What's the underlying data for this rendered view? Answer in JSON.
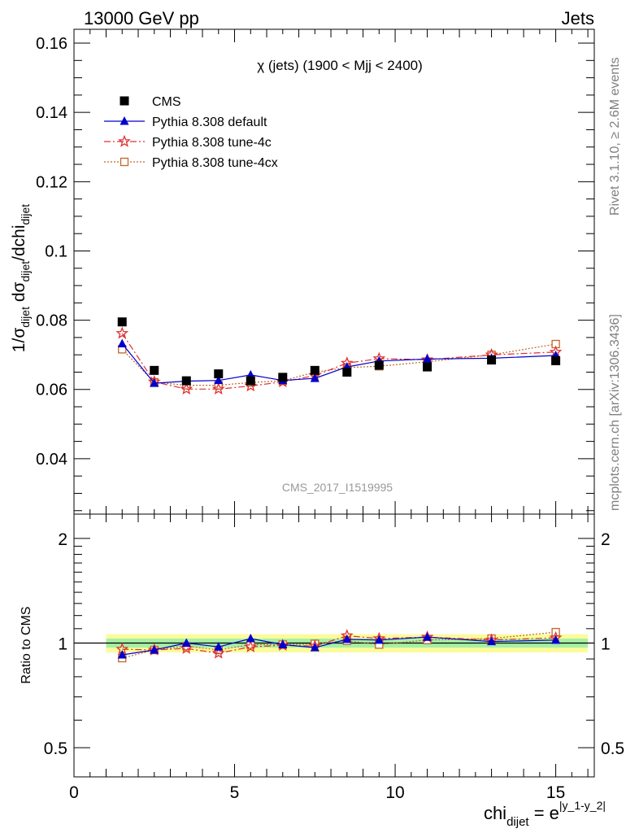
{
  "header": {
    "left": "13000 GeV pp",
    "right": "Jets"
  },
  "side_labels": {
    "upper": "Rivet 3.1.10, ≥ 2.6M events",
    "lower": "mcplots.cern.ch [arXiv:1306.3436]"
  },
  "chart_data": [
    {
      "type": "scatter",
      "panel": "main",
      "title": "χ (jets) (1900 < Mjj < 2400)",
      "watermark": "CMS_2017_I1519995",
      "ylabel_parts": {
        "a": "1/σ",
        "a_sub": "dijet",
        "b": " dσ",
        "b_sub": "dijet",
        "c": "/dchi",
        "c_sub": "dijet"
      },
      "xlim": [
        0,
        16.2
      ],
      "ylim": [
        0.024,
        0.164
      ],
      "x_ticks": [
        0,
        5,
        10,
        15
      ],
      "y_ticks": [
        0.04,
        0.06,
        0.08,
        0.1,
        0.12,
        0.14,
        0.16
      ],
      "y_tick_labels": [
        "0.04",
        "0.06",
        "0.08",
        "0.1",
        "0.12",
        "0.14",
        "0.16"
      ],
      "legend": "top-left",
      "x": [
        1.5,
        2.5,
        3.5,
        4.5,
        5.5,
        6.5,
        7.5,
        8.5,
        9.5,
        11,
        13,
        15
      ],
      "series": [
        {
          "name": "CMS",
          "marker": "square",
          "color": "#000000",
          "values": [
            0.0795,
            0.0655,
            0.0625,
            0.0645,
            0.0625,
            0.0635,
            0.0655,
            0.065,
            0.067,
            0.0665,
            0.0685,
            0.0683
          ]
        },
        {
          "name": "Pythia 8.308 default",
          "marker": "triangle",
          "color": "#0000cc",
          "line": "solid",
          "values": [
            0.0732,
            0.0618,
            0.0624,
            0.0626,
            0.0642,
            0.0626,
            0.0632,
            0.0665,
            0.0682,
            0.0688,
            0.069,
            0.0698
          ]
        },
        {
          "name": "Pythia 8.308 tune-4c",
          "marker": "star",
          "color": "#e03030",
          "line": "dashdot",
          "values": [
            0.0762,
            0.0622,
            0.0601,
            0.0601,
            0.061,
            0.0622,
            0.064,
            0.0676,
            0.0689,
            0.0686,
            0.07,
            0.0708
          ]
        },
        {
          "name": "Pythia 8.308 tune-4cx",
          "marker": "open-square",
          "color": "#c0672a",
          "line": "dotted",
          "values": [
            0.0716,
            0.0621,
            0.0612,
            0.0612,
            0.062,
            0.0625,
            0.065,
            0.0663,
            0.0667,
            0.068,
            0.07,
            0.0731
          ]
        }
      ]
    },
    {
      "type": "scatter",
      "panel": "ratio",
      "ylabel": "Ratio to CMS",
      "xlabel_parts": {
        "base": "chi",
        "sub": "dijet",
        "eq": " = e",
        "sup": "|y_1-y_2|"
      },
      "xlim": [
        0,
        16.2
      ],
      "ylim": [
        0.412,
        2.35
      ],
      "log_y": true,
      "y_ticks": [
        0.5,
        1,
        2
      ],
      "y_tick_labels": [
        "0.5",
        "1",
        "2"
      ],
      "x_ticks": [
        0,
        5,
        10,
        15
      ],
      "x_tick_labels": [
        "0",
        "5",
        "10",
        "15"
      ],
      "band_inner": 0.03,
      "band_outer": 0.06,
      "series": [
        {
          "name": "Pythia 8.308 default",
          "values": [
            0.925,
            0.955,
            1.0,
            0.975,
            1.03,
            0.99,
            0.97,
            1.025,
            1.02,
            1.04,
            1.01,
            1.02
          ]
        },
        {
          "name": "Pythia 8.308 tune-4c",
          "values": [
            0.96,
            0.955,
            0.965,
            0.935,
            0.975,
            0.985,
            0.98,
            1.05,
            1.03,
            1.04,
            1.02,
            1.035
          ]
        },
        {
          "name": "Pythia 8.308 tune-4cx",
          "values": [
            0.905,
            0.955,
            0.98,
            0.955,
            0.99,
            0.99,
            0.995,
            1.015,
            0.99,
            1.02,
            1.03,
            1.075
          ]
        }
      ]
    }
  ]
}
